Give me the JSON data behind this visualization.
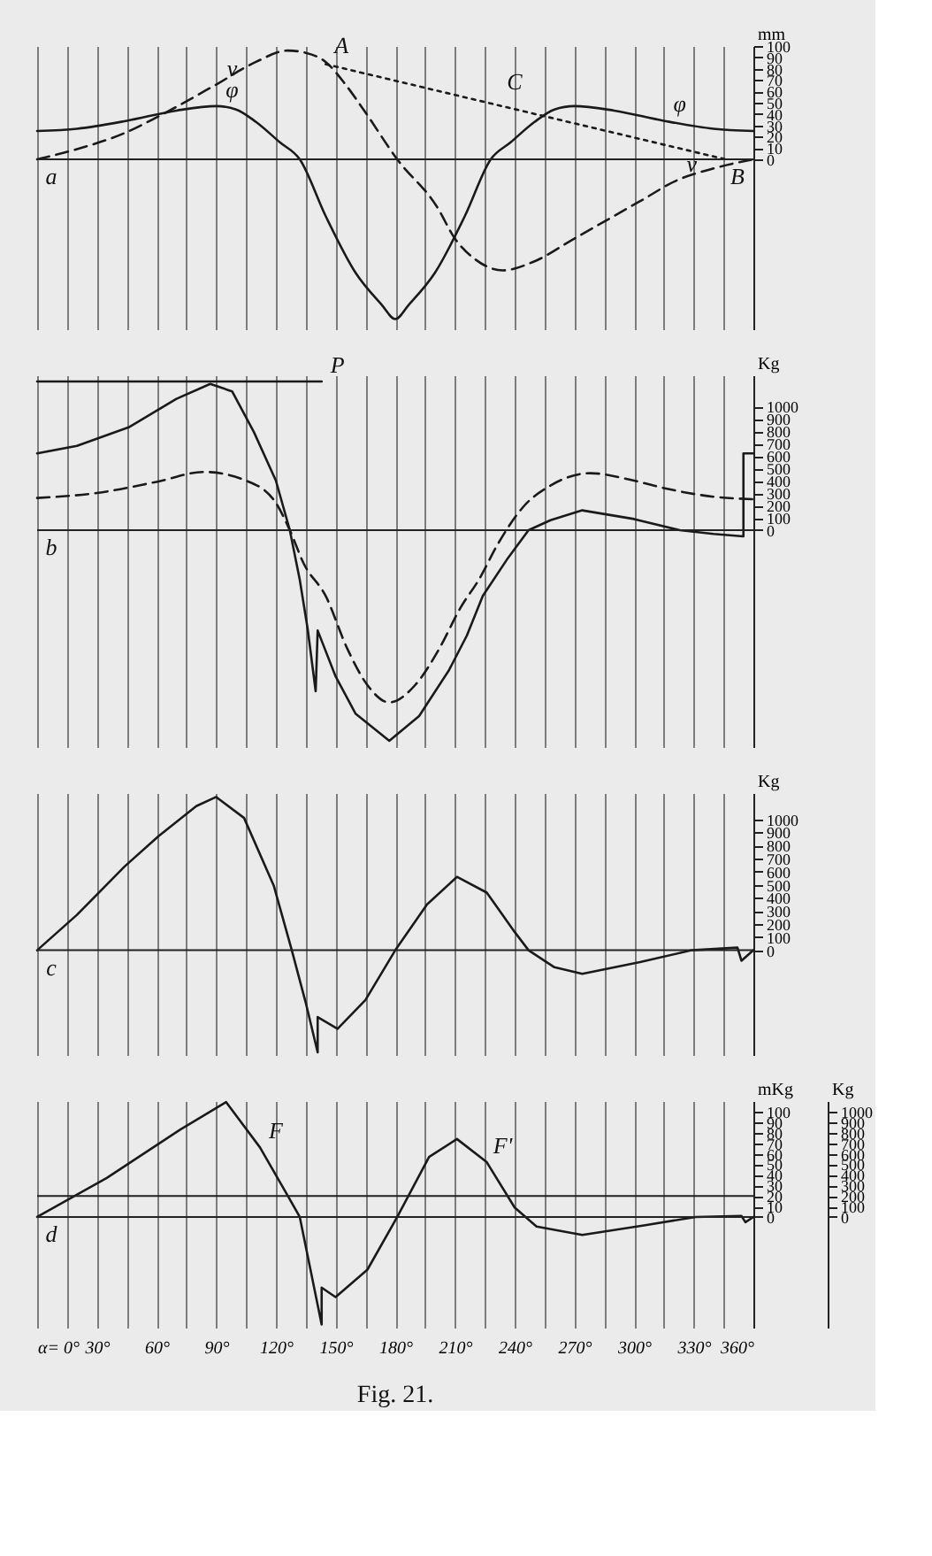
{
  "chart_data": [
    {
      "type": "line",
      "xlim": [
        0,
        360
      ],
      "xticks": [
        0,
        15,
        30,
        45,
        60,
        75,
        90,
        105,
        120,
        135,
        150,
        165,
        180,
        195,
        210,
        225,
        240,
        255,
        270,
        285,
        300,
        315,
        330,
        345,
        360
      ],
      "ylim": [
        -150,
        100
      ],
      "yticks": [
        0,
        10,
        20,
        30,
        40,
        50,
        60,
        70,
        80,
        90,
        100
      ],
      "ylabel": "mm",
      "grid": "x",
      "tick_labels": "y",
      "series": [
        {
          "color": "#1a1a1a",
          "line_style": "solid",
          "x": [
            0,
            20,
            45,
            70,
            90,
            100,
            110,
            122,
            132,
            145,
            160,
            173,
            180,
            187,
            200,
            215,
            228,
            238,
            250,
            260,
            270,
            290,
            315,
            340,
            360
          ],
          "values": [
            25,
            27,
            34,
            43,
            47,
            44,
            33,
            15,
            0,
            -50,
            -100,
            -128,
            -141,
            -128,
            -100,
            -50,
            0,
            15,
            33,
            44,
            47,
            43,
            34,
            27,
            25
          ]
        },
        {
          "color": "#1a1a1a",
          "line_style": "dashed",
          "x": [
            0,
            20,
            45,
            60,
            90,
            110,
            126,
            135,
            145,
            155,
            164,
            181,
            201,
            210,
            220,
            234,
            250,
            270,
            304,
            321,
            340,
            360
          ],
          "values": [
            0,
            9,
            24,
            37,
            66,
            86,
            96,
            94,
            86,
            66,
            44,
            0,
            -42,
            -70,
            -88,
            -98,
            -90,
            -70,
            -36,
            -19,
            -8,
            0
          ]
        },
        {
          "color": "#1a1a1a",
          "line_style": "dotted",
          "x": [
            145,
            346
          ],
          "values": [
            84,
            0
          ]
        }
      ],
      "ref_lines": [
        {
          "axis": "y",
          "value": 0
        }
      ],
      "annotations": [
        {
          "text": "a",
          "x": 0,
          "y": 0
        },
        {
          "text": "v",
          "x": 90,
          "y": 66
        },
        {
          "text": "φ",
          "x": 90,
          "y": 47
        },
        {
          "text": "A",
          "x": 145,
          "y": 86
        },
        {
          "text": "C",
          "x": 232,
          "y": 54
        },
        {
          "text": "φ",
          "x": 315,
          "y": 34
        },
        {
          "text": "v",
          "x": 321,
          "y": -19
        },
        {
          "text": "B",
          "x": 360,
          "y": 0
        }
      ]
    },
    {
      "type": "line",
      "xlim": [
        0,
        360
      ],
      "xticks": [
        0,
        15,
        30,
        45,
        60,
        75,
        90,
        105,
        120,
        135,
        150,
        165,
        180,
        195,
        210,
        225,
        240,
        255,
        270,
        285,
        300,
        315,
        330,
        345,
        360
      ],
      "ylim": [
        -1750,
        1250
      ],
      "yticks": [
        0,
        100,
        200,
        300,
        400,
        500,
        600,
        700,
        800,
        900,
        1000
      ],
      "ylabel": "Kg",
      "grid": "x",
      "tick_labels": "y",
      "series": [
        {
          "color": "#1a1a1a",
          "line_style": "solid",
          "x": [
            0,
            20,
            46,
            70,
            87,
            98,
            109,
            120,
            127,
            132,
            136,
            140,
            141,
            150,
            160,
            177,
            192,
            207,
            216,
            224,
            236,
            247,
            258,
            274,
            300,
            323,
            340,
            355,
            355,
            360
          ],
          "values": [
            620,
            680,
            830,
            1060,
            1180,
            1120,
            790,
            400,
            0,
            -400,
            -800,
            -1300,
            -810,
            -1180,
            -1480,
            -1700,
            -1500,
            -1130,
            -850,
            -530,
            -240,
            0,
            80,
            160,
            90,
            0,
            -30,
            -50,
            620,
            620
          ]
        },
        {
          "color": "#1a1a1a",
          "line_style": "dashed",
          "x": [
            0,
            30,
            60,
            84,
            105,
            120,
            127,
            134,
            145,
            156,
            166,
            177,
            190,
            202,
            213,
            222,
            232,
            245,
            258,
            278,
            300,
            315,
            340,
            360
          ],
          "values": [
            260,
            300,
            390,
            470,
            400,
            220,
            0,
            -270,
            -530,
            -960,
            -1250,
            -1390,
            -1250,
            -960,
            -620,
            -400,
            -100,
            200,
            360,
            460,
            400,
            340,
            270,
            250
          ]
        },
        {
          "color": "#1a1a1a",
          "line_style": "solid",
          "x": [
            0,
            143
          ],
          "values": [
            1200,
            1200
          ]
        }
      ],
      "ref_lines": [
        {
          "axis": "y",
          "value": 0
        }
      ],
      "annotations": [
        {
          "text": "P",
          "x": 143,
          "y": 1200
        },
        {
          "text": "b",
          "x": 0,
          "y": 0
        }
      ]
    },
    {
      "type": "line",
      "xlim": [
        0,
        360
      ],
      "xticks": [
        0,
        15,
        30,
        45,
        60,
        75,
        90,
        105,
        120,
        135,
        150,
        165,
        180,
        195,
        210,
        225,
        240,
        255,
        270,
        285,
        300,
        315,
        330,
        345,
        360
      ],
      "ylim": [
        -800,
        1200
      ],
      "yticks": [
        0,
        100,
        200,
        300,
        400,
        500,
        600,
        700,
        800,
        900,
        1000
      ],
      "ylabel": "Kg",
      "grid": "x",
      "tick_labels": "y",
      "series": [
        {
          "color": "#1a1a1a",
          "line_style": "solid",
          "x": [
            0,
            20,
            44,
            61,
            80,
            90,
            104,
            119,
            128,
            135,
            141,
            141,
            151,
            165,
            180,
            196,
            211,
            226,
            240,
            247,
            260,
            274,
            303,
            329,
            352,
            354,
            360
          ],
          "values": [
            0,
            270,
            640,
            870,
            1100,
            1170,
            1010,
            490,
            0,
            -400,
            -780,
            -510,
            -600,
            -380,
            0,
            350,
            560,
            440,
            140,
            0,
            -130,
            -180,
            -90,
            0,
            20,
            -80,
            0
          ]
        }
      ],
      "ref_lines": [
        {
          "axis": "y",
          "value": 0
        }
      ],
      "annotations": [
        {
          "text": "c",
          "x": 0,
          "y": 0
        }
      ]
    },
    {
      "type": "line",
      "xlim": [
        0,
        360
      ],
      "xticks": [
        {
          "value": 0,
          "label": "α= 0°"
        },
        {
          "value": 15,
          "label": null
        },
        {
          "value": 30,
          "label": "30°"
        },
        {
          "value": 45,
          "label": null
        },
        {
          "value": 60,
          "label": "60°"
        },
        {
          "value": 75,
          "label": null
        },
        {
          "value": 90,
          "label": "90°"
        },
        {
          "value": 105,
          "label": null
        },
        {
          "value": 120,
          "label": "120°"
        },
        {
          "value": 135,
          "label": null
        },
        {
          "value": 150,
          "label": "150°"
        },
        {
          "value": 165,
          "label": null
        },
        {
          "value": 180,
          "label": "180°"
        },
        {
          "value": 195,
          "label": null
        },
        {
          "value": 210,
          "label": "210°"
        },
        {
          "value": 225,
          "label": null
        },
        {
          "value": 240,
          "label": "240°"
        },
        {
          "value": 255,
          "label": null
        },
        {
          "value": 270,
          "label": "270°"
        },
        {
          "value": 285,
          "label": null
        },
        {
          "value": 300,
          "label": "300°"
        },
        {
          "value": 315,
          "label": null
        },
        {
          "value": 330,
          "label": "330°"
        },
        {
          "value": 345,
          "label": null
        },
        {
          "value": 360,
          "label": "360°"
        }
      ],
      "ylim": [
        -105,
        110
      ],
      "yticks": [
        0,
        10,
        20,
        30,
        40,
        50,
        60,
        70,
        80,
        90,
        100
      ],
      "ylabel": "mKg",
      "y2lim": [
        -1050,
        1100
      ],
      "y2ticks": [
        0,
        100,
        200,
        300,
        400,
        500,
        600,
        700,
        800,
        900,
        1000
      ],
      "y2label": "Kg",
      "grid": "x",
      "series": [
        {
          "color": "#1a1a1a",
          "line_style": "solid",
          "x": [
            0,
            35,
            72,
            95,
            112,
            126,
            132,
            143,
            143,
            150,
            166,
            181,
            197,
            211,
            226,
            240,
            251,
            274,
            305,
            331,
            354,
            356,
            360
          ],
          "values": [
            0,
            37,
            83,
            109,
            66,
            20,
            0,
            -102,
            -67,
            -76,
            -50,
            0,
            57,
            74,
            52,
            9,
            -9,
            -17,
            -8,
            0,
            1,
            -5,
            0
          ]
        }
      ],
      "ref_lines": [
        {
          "axis": "y",
          "value": 0
        },
        {
          "axis": "y",
          "value": 20
        }
      ],
      "annotations": [
        {
          "text": "d",
          "x": 0,
          "y": 0
        },
        {
          "text": "F",
          "x": 112,
          "y": 66
        },
        {
          "text": "F'",
          "x": 226,
          "y": 52
        },
        "Fig. 21."
      ]
    }
  ]
}
